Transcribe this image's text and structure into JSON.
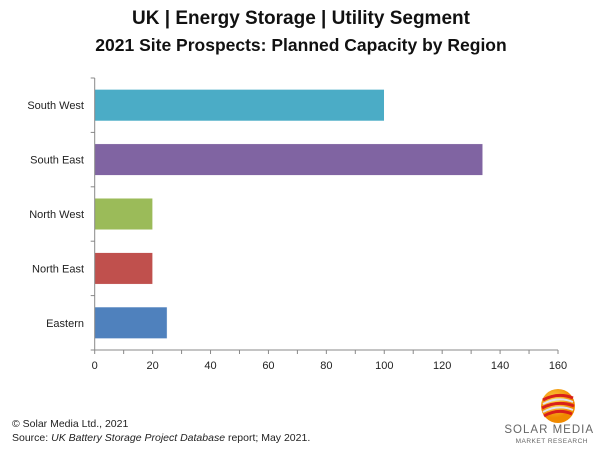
{
  "chart_data": {
    "type": "bar",
    "orientation": "horizontal",
    "title": "UK | Energy Storage | Utility Segment",
    "subtitle": "2021 Site Prospects: Planned Capacity by Region",
    "categories": [
      "South West",
      "South East",
      "North West",
      "North East",
      "Eastern"
    ],
    "values": [
      100,
      134,
      20,
      20,
      25
    ],
    "colors": [
      "#4bacc6",
      "#8064a2",
      "#9bbb59",
      "#c0504d",
      "#4f81bd"
    ],
    "xlim": [
      0,
      160
    ],
    "xticks": [
      0,
      20,
      40,
      60,
      80,
      100,
      120,
      140,
      160
    ],
    "grid": false
  },
  "footer": {
    "copyright": "© Solar Media Ltd., 2021",
    "source_prefix": "Source: ",
    "source_title": "UK Battery Storage Project Database",
    "source_suffix": " report; May 2021."
  },
  "logo": {
    "line1": "SOLAR MEDIA",
    "line2": "MARKET RESEARCH"
  }
}
